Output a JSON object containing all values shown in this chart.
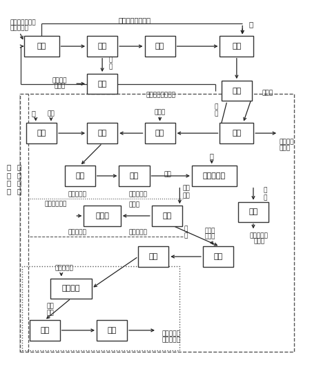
{
  "fig_w": 4.65,
  "fig_h": 5.64,
  "dpi": 100,
  "boxes": {
    "chengyan": [
      0.128,
      0.882,
      0.11,
      0.052,
      "成盐"
    ],
    "yanhua": [
      0.318,
      0.882,
      0.095,
      0.052,
      "羟化"
    ],
    "yleng": [
      0.498,
      0.882,
      0.095,
      0.052,
      "预冷"
    ],
    "rongjie": [
      0.738,
      0.882,
      0.105,
      0.052,
      "溶解"
    ],
    "qihua": [
      0.318,
      0.785,
      0.095,
      0.052,
      "气化"
    ],
    "fenli": [
      0.738,
      0.767,
      0.095,
      0.052,
      "分离"
    ],
    "peizhii": [
      0.128,
      0.658,
      0.095,
      0.052,
      "配制"
    ],
    "suanhua": [
      0.318,
      0.658,
      0.095,
      0.052,
      "酸化"
    ],
    "tuose": [
      0.498,
      0.658,
      0.095,
      0.052,
      "脱色"
    ],
    "xifue": [
      0.738,
      0.658,
      0.105,
      0.052,
      "吸附"
    ],
    "lengque": [
      0.248,
      0.548,
      0.095,
      0.052,
      "冷却"
    ],
    "jiejing": [
      0.418,
      0.548,
      0.095,
      0.052,
      "结晶"
    ],
    "lixin": [
      0.668,
      0.548,
      0.14,
      0.052,
      "离心、洗涤"
    ],
    "ganzhao1": [
      0.79,
      0.455,
      0.095,
      0.052,
      "干燥"
    ],
    "cuqu": [
      0.52,
      0.445,
      0.095,
      0.052,
      "萩取"
    ],
    "fancu": [
      0.318,
      0.445,
      0.115,
      0.052,
      "反萩取"
    ],
    "zhonghe": [
      0.68,
      0.34,
      0.095,
      0.052,
      "中和"
    ],
    "yure": [
      0.478,
      0.34,
      0.095,
      0.052,
      "预热"
    ],
    "sizheng": [
      0.22,
      0.258,
      0.13,
      0.052,
      "四效蒸发"
    ],
    "lixin2": [
      0.138,
      0.15,
      0.095,
      0.052,
      "离心"
    ],
    "ganzhao2": [
      0.348,
      0.15,
      0.095,
      0.052,
      "干燥"
    ]
  }
}
